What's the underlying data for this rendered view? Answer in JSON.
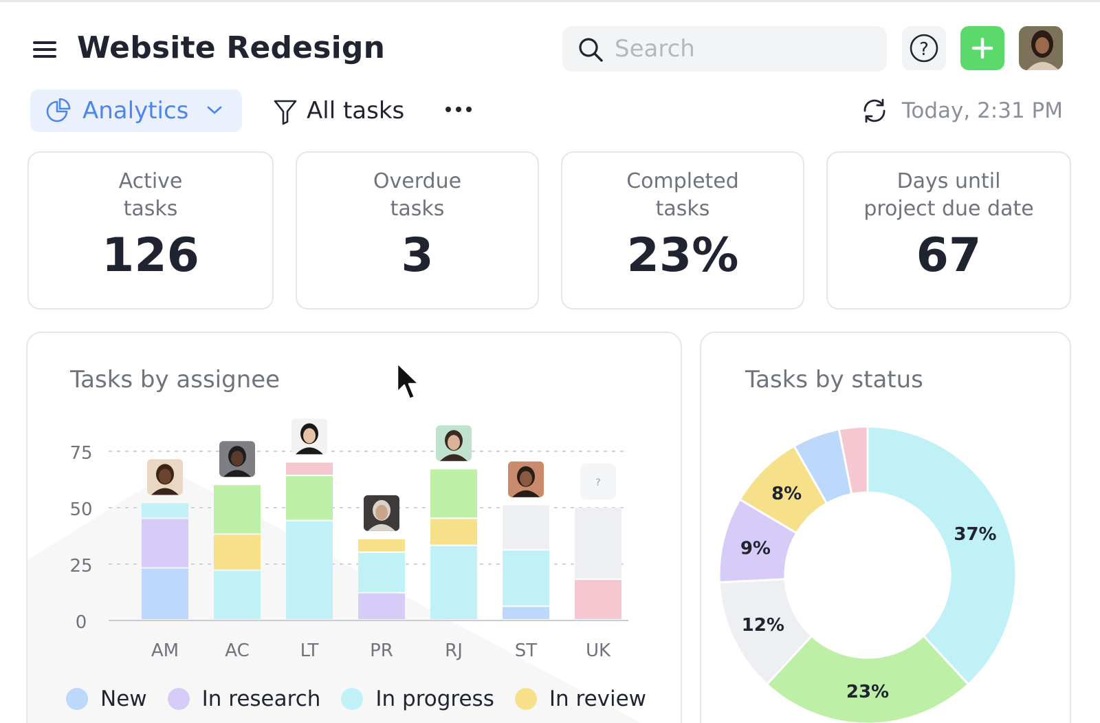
{
  "header": {
    "title": "Website Redesign",
    "search": {
      "placeholder": "Search",
      "value": ""
    },
    "help_label": "?",
    "add_label": "+"
  },
  "toolbar": {
    "view_label": "Analytics",
    "filter_label": "All tasks",
    "more_label": "•••",
    "updated_label": "Today, 2:31 PM"
  },
  "stats": [
    {
      "label_line1": "Active",
      "label_line2": "tasks",
      "value": "126"
    },
    {
      "label_line1": "Overdue",
      "label_line2": "tasks",
      "value": "3"
    },
    {
      "label_line1": "Completed",
      "label_line2": "tasks",
      "value": "23%"
    },
    {
      "label_line1": "Days until",
      "label_line2": "project due date",
      "value": "67"
    }
  ],
  "colors": {
    "accent_blue": "#4c86ea",
    "add_green": "#5cd96b",
    "new": "#bcd8fb",
    "in_research": "#d7cbf7",
    "in_progress": "#bff1f7",
    "in_review": "#f6e08a",
    "done": "#bdf0a6",
    "blocked": "#f5c7d0",
    "unassigned": "#eeeff2"
  },
  "chart_data": [
    {
      "type": "bar",
      "stacked": true,
      "title": "Tasks by assignee",
      "categories": [
        "AM",
        "AC",
        "LT",
        "PR",
        "RJ",
        "ST",
        "UK"
      ],
      "y_ticks": [
        "75",
        "50",
        "25",
        "0"
      ],
      "ylim": [
        0,
        80
      ],
      "grid": true,
      "legend_position": "bottom",
      "series": [
        {
          "key": "new",
          "name": "New",
          "color": "#bcd8fb",
          "values": [
            23,
            0,
            0,
            0,
            0,
            6,
            0
          ]
        },
        {
          "key": "in_research",
          "name": "In research",
          "color": "#d7cbf7",
          "values": [
            22,
            0,
            0,
            12,
            0,
            0,
            0
          ]
        },
        {
          "key": "in_progress",
          "name": "In progress",
          "color": "#bff1f7",
          "values": [
            7,
            22,
            44,
            18,
            33,
            25,
            0
          ]
        },
        {
          "key": "in_review",
          "name": "In review",
          "color": "#f6e08a",
          "values": [
            0,
            16,
            0,
            6,
            12,
            0,
            0
          ]
        },
        {
          "key": "done",
          "color": "#bdf0a6",
          "values": [
            0,
            22,
            20,
            0,
            22,
            0,
            0
          ]
        },
        {
          "key": "blocked",
          "color": "#f5c7d0",
          "values": [
            0,
            0,
            6,
            0,
            0,
            0,
            18
          ]
        },
        {
          "key": "unassigned",
          "color": "#eeeff2",
          "values": [
            0,
            0,
            0,
            0,
            0,
            20,
            32
          ]
        }
      ],
      "assignee_unknown_label": "?"
    },
    {
      "type": "pie",
      "donut": true,
      "title": "Tasks by status",
      "slices": [
        {
          "label": "37%",
          "value": 37,
          "color": "#bff1f7"
        },
        {
          "label": "23%",
          "value": 23,
          "color": "#bdf0a6"
        },
        {
          "label": "12%",
          "value": 12,
          "color": "#eeeff2"
        },
        {
          "label": "9%",
          "value": 9,
          "color": "#d7cbf7"
        },
        {
          "label": "8%",
          "value": 8,
          "color": "#f6e08a"
        },
        {
          "label": "",
          "value": 5,
          "color": "#bcd8fb"
        },
        {
          "label": "",
          "value": 3,
          "color": "#f5c7d0"
        }
      ]
    }
  ]
}
